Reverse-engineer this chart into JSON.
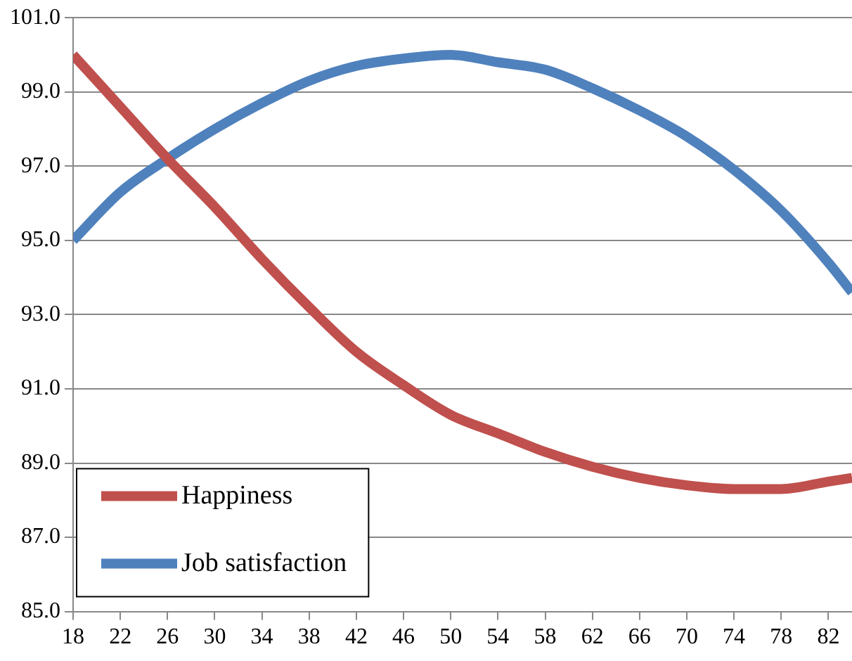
{
  "chart_data": {
    "type": "line",
    "x": [
      18,
      22,
      26,
      30,
      34,
      38,
      42,
      46,
      50,
      54,
      58,
      62,
      66,
      70,
      74,
      78,
      82,
      84
    ],
    "series": [
      {
        "name": "Happiness",
        "color": "#c0504d",
        "values": [
          100.0,
          98.6,
          97.2,
          95.9,
          94.5,
          93.2,
          92.0,
          91.1,
          90.3,
          89.8,
          89.3,
          88.9,
          88.6,
          88.4,
          88.3,
          88.3,
          88.5,
          88.6
        ]
      },
      {
        "name": "Job satisfaction",
        "color": "#4f81bd",
        "values": [
          95.0,
          96.3,
          97.2,
          98.0,
          98.7,
          99.3,
          99.7,
          99.9,
          100.0,
          99.8,
          99.6,
          99.1,
          98.5,
          97.8,
          96.9,
          95.8,
          94.4,
          93.6
        ]
      }
    ],
    "xlim": [
      18,
      84
    ],
    "xticks": [
      18,
      22,
      26,
      30,
      34,
      38,
      42,
      46,
      50,
      54,
      58,
      62,
      66,
      70,
      74,
      78,
      82
    ],
    "ylim": [
      85,
      101
    ],
    "yticks": [
      {
        "value": 85,
        "label": "85.0"
      },
      {
        "value": 87,
        "label": "87.0"
      },
      {
        "value": 89,
        "label": "89.0"
      },
      {
        "value": 91,
        "label": "91.0"
      },
      {
        "value": 93,
        "label": "93.0"
      },
      {
        "value": 95,
        "label": "95.0"
      },
      {
        "value": 97,
        "label": "97.0"
      },
      {
        "value": 99,
        "label": "99.0"
      },
      {
        "value": 101,
        "label": "101.0"
      }
    ],
    "grid": "y",
    "legend": "bottom left",
    "marker": "none",
    "line_style": "solid"
  }
}
